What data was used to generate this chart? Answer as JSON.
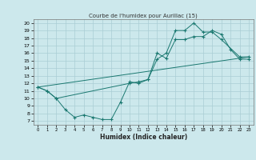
{
  "title": "Courbe de l'humidex pour Aurillac (15)",
  "xlabel": "Humidex (Indice chaleur)",
  "bg_color": "#cce8ec",
  "line_color": "#1a7870",
  "grid_color": "#aacdd4",
  "xlim": [
    -0.5,
    23.5
  ],
  "ylim": [
    6.5,
    20.5
  ],
  "xticks": [
    0,
    1,
    2,
    3,
    4,
    5,
    6,
    7,
    8,
    9,
    10,
    11,
    12,
    13,
    14,
    15,
    16,
    17,
    18,
    19,
    20,
    21,
    22,
    23
  ],
  "yticks": [
    7,
    8,
    9,
    10,
    11,
    12,
    13,
    14,
    15,
    16,
    17,
    18,
    19,
    20
  ],
  "line1_x": [
    0,
    1,
    2,
    3,
    4,
    5,
    6,
    7,
    8,
    9,
    10,
    11,
    12,
    13,
    14,
    15,
    16,
    17,
    18,
    19,
    20,
    21,
    22,
    23
  ],
  "line1_y": [
    11.5,
    11.0,
    10.0,
    8.5,
    7.5,
    7.8,
    7.5,
    7.2,
    7.2,
    9.5,
    12.2,
    12.0,
    12.5,
    16.0,
    15.3,
    17.8,
    17.8,
    18.2,
    18.2,
    19.0,
    18.5,
    16.5,
    15.2,
    15.2
  ],
  "line2_x": [
    0,
    1,
    2,
    10,
    11,
    12,
    13,
    14,
    15,
    16,
    17,
    18,
    19,
    20,
    22,
    23
  ],
  "line2_y": [
    11.5,
    11.0,
    10.0,
    12.0,
    12.2,
    12.5,
    15.2,
    16.0,
    19.0,
    19.0,
    20.0,
    18.8,
    18.8,
    17.8,
    15.5,
    15.5
  ],
  "line3_x": [
    0,
    23
  ],
  "line3_y": [
    11.5,
    15.5
  ]
}
